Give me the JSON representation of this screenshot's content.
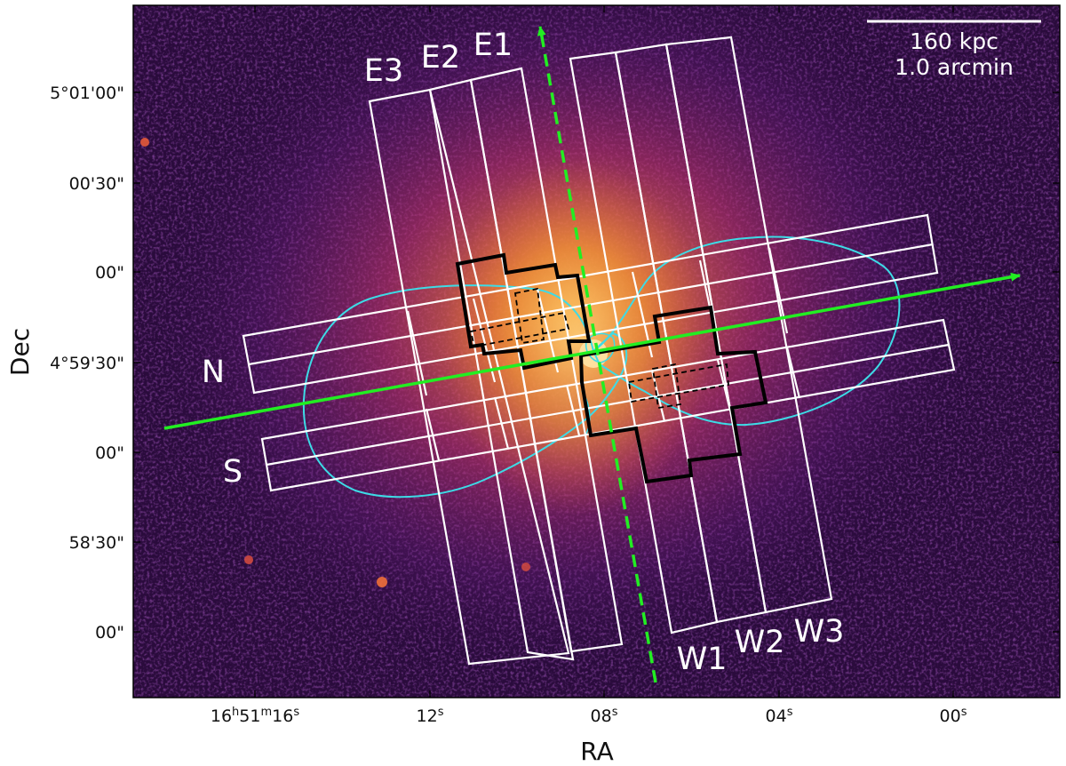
{
  "axes": {
    "xlabel": "RA",
    "ylabel": "Dec"
  },
  "ra_ticks": [
    {
      "h": "16",
      "m": "51",
      "s": "16"
    },
    {
      "s": "12"
    },
    {
      "s": "08"
    },
    {
      "s": "04"
    },
    {
      "s": "00"
    }
  ],
  "ra_units": {
    "h": "h",
    "m": "m",
    "s": "s"
  },
  "dec_ticks": [
    "5°01'00\"",
    "00'30\"",
    "00\"",
    "4°59'30\"",
    "00\"",
    "58'30\"",
    "00\""
  ],
  "scale_bar": {
    "line1": "160 kpc",
    "line2": "1.0 arcmin"
  },
  "strip_labels": {
    "E1": "E1",
    "E2": "E2",
    "E3": "E3",
    "W1": "W1",
    "W2": "W2",
    "W3": "W3",
    "N": "N",
    "S": "S"
  },
  "colors": {
    "background_dark": "#2a0b3c",
    "background_mid": "#5b1a6e",
    "cluster_core": "#f3a33a",
    "cluster_inner": "#d9533b",
    "region_outline": "#ffffff",
    "region_highlight": "#000000",
    "radio_contour": "#3ddbe6",
    "axis_arrow": "#22ee22"
  }
}
